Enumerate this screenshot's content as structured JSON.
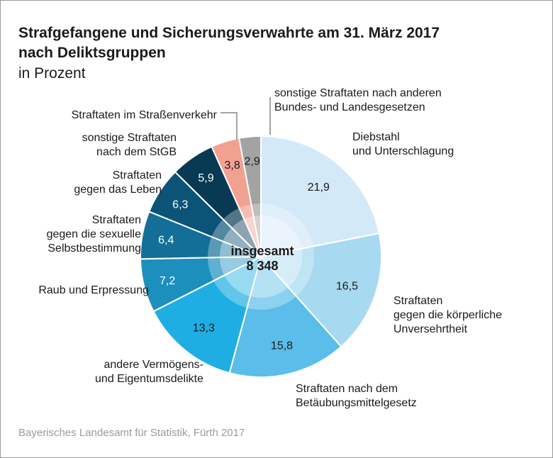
{
  "title_line1": "Strafgefangene und Sicherungsverwahrte am 31. März 2017",
  "title_line2": "nach Deliktsgruppen",
  "subtitle": "in Prozent",
  "source": "Bayerisches Landesamt für Statistik, Fürth 2017",
  "chart_data": {
    "type": "pie",
    "style": "donut",
    "center_label": "insgesamt",
    "center_value": "8 348",
    "slices": [
      {
        "label_lines": [
          "Diebstahl",
          "und Unterschlagung"
        ],
        "value": 21.9,
        "value_label": "21,9",
        "color": "#d4e9f8"
      },
      {
        "label_lines": [
          "Straftaten",
          "gegen die körperliche",
          "Unversehrtheit"
        ],
        "value": 16.5,
        "value_label": "16,5",
        "color": "#a7d9f0"
      },
      {
        "label_lines": [
          "Straftaten nach dem",
          "Betäubungsmittelgesetz"
        ],
        "value": 15.8,
        "value_label": "15,8",
        "color": "#5bbde9"
      },
      {
        "label_lines": [
          "andere Vermögens-",
          "und Eigentumsdelikte"
        ],
        "value": 13.3,
        "value_label": "13,3",
        "color": "#1faee3"
      },
      {
        "label_lines": [
          "Raub und Erpressung"
        ],
        "value": 7.2,
        "value_label": "7,2",
        "color": "#1d8fbd"
      },
      {
        "label_lines": [
          "Straftaten",
          "gegen die sexuelle",
          "Selbstbestimmung"
        ],
        "value": 6.4,
        "value_label": "6,4",
        "color": "#136f98"
      },
      {
        "label_lines": [
          "Straftaten",
          "gegen das Leben"
        ],
        "value": 6.3,
        "value_label": "6,3",
        "color": "#0b5478"
      },
      {
        "label_lines": [
          "sonstige Straftaten",
          "nach dem StGB"
        ],
        "value": 5.9,
        "value_label": "5,9",
        "color": "#083a53"
      },
      {
        "label_lines": [
          "Straftaten im Straßenverkehr"
        ],
        "value": 3.8,
        "value_label": "3,8",
        "color": "#f2a190"
      },
      {
        "label_lines": [
          "sonstige Straftaten nach anderen",
          "Bundes- und Landesgesetzen"
        ],
        "value": 2.9,
        "value_label": "2,9",
        "color": "#a3a3a3"
      }
    ]
  }
}
